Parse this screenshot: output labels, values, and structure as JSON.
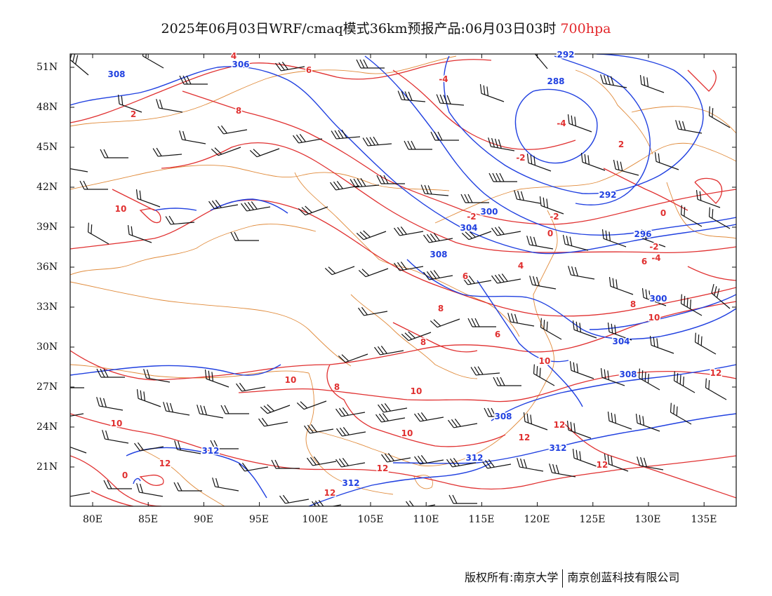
{
  "header": {
    "title": "2025年06月03日WRF/cmaq模式36km预报产品:06月03日03时",
    "level": "700hpa"
  },
  "axes": {
    "lat_labels": [
      "51N",
      "48N",
      "45N",
      "42N",
      "39N",
      "36N",
      "33N",
      "30N",
      "27N",
      "24N",
      "21N"
    ],
    "lon_labels": [
      "80E",
      "85E",
      "90E",
      "95E",
      "100E",
      "105E",
      "110E",
      "115E",
      "120E",
      "125E",
      "130E",
      "135E"
    ]
  },
  "map": {
    "extent": {
      "lon": [
        78,
        138
      ],
      "lat": [
        18.5,
        52.5
      ]
    },
    "colors": {
      "geopotential": "#2040e0",
      "temperature": "#e03030",
      "border": "#e08a3a",
      "wind": "#111111"
    },
    "height_labels": [
      "308",
      "306",
      "292",
      "288",
      "292",
      "296",
      "300",
      "304",
      "308",
      "300",
      "304",
      "308",
      "308",
      "312",
      "312",
      "312",
      "312"
    ],
    "temp_labels": [
      "4",
      "6",
      "2",
      "-4",
      "-4",
      "-2",
      "8",
      "10",
      "2",
      "-2",
      "-2",
      "0",
      "0",
      "-2",
      "-4",
      "6",
      "4",
      "6",
      "8",
      "8",
      "10",
      "8",
      "6",
      "10",
      "10",
      "8",
      "10",
      "10",
      "10",
      "12",
      "12",
      "12",
      "12",
      "12",
      "12",
      "12",
      "0"
    ]
  },
  "footer": {
    "copyright": "版权所有:南京大学",
    "company": "南京创蓝科技有限公司"
  }
}
